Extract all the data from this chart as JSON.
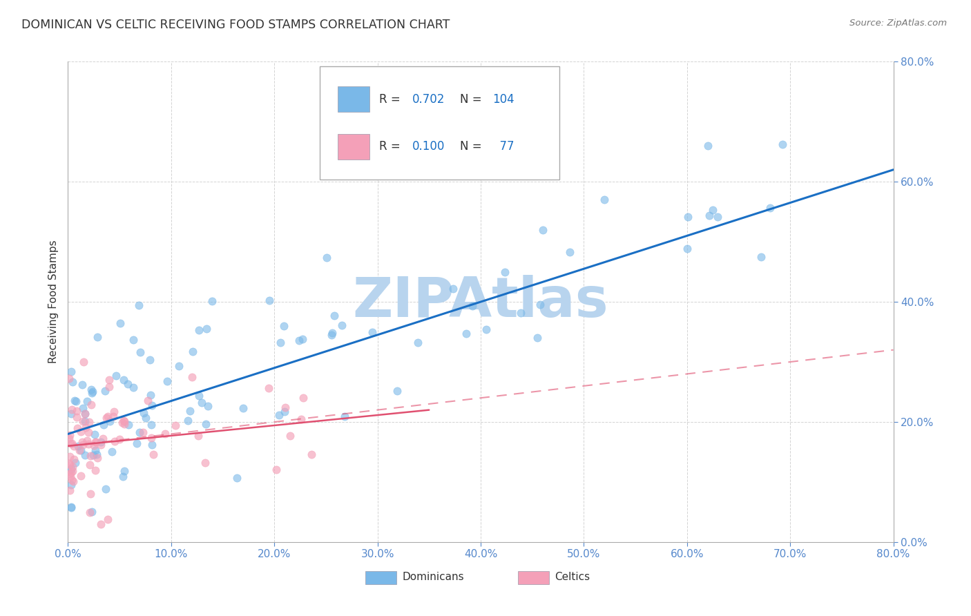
{
  "title": "DOMINICAN VS CELTIC RECEIVING FOOD STAMPS CORRELATION CHART",
  "source": "Source: ZipAtlas.com",
  "ylabel": "Receiving Food Stamps",
  "dominican_R": 0.702,
  "dominican_N": 104,
  "celtic_R": 0.1,
  "celtic_N": 77,
  "dominican_color": "#7ab8e8",
  "celtic_color": "#f4a0b8",
  "dominican_line_color": "#1a6fc4",
  "celtic_solid_color": "#e05070",
  "celtic_dash_color": "#e05070",
  "background_color": "#ffffff",
  "grid_color": "#c8c8c8",
  "title_color": "#333333",
  "source_color": "#777777",
  "axis_tick_color": "#5588cc",
  "legend_value_color": "#1a6fc4",
  "watermark_color": "#b8d4ee",
  "xlim": [
    0,
    80
  ],
  "ylim": [
    0,
    80
  ],
  "dom_line_x0": 0,
  "dom_line_y0": 18,
  "dom_line_x1": 80,
  "dom_line_y1": 62,
  "celt_solid_x0": 0,
  "celt_solid_y0": 16,
  "celt_solid_x1": 35,
  "celt_solid_y1": 22,
  "celt_dash_x0": 0,
  "celt_dash_y0": 16,
  "celt_dash_x1": 80,
  "celt_dash_y1": 32
}
